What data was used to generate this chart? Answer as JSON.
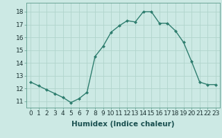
{
  "x": [
    0,
    1,
    2,
    3,
    4,
    5,
    6,
    7,
    8,
    9,
    10,
    11,
    12,
    13,
    14,
    15,
    16,
    17,
    18,
    19,
    20,
    21,
    22,
    23
  ],
  "y": [
    12.5,
    12.2,
    11.9,
    11.6,
    11.3,
    10.9,
    11.2,
    11.7,
    14.5,
    15.3,
    16.4,
    16.9,
    17.3,
    17.2,
    18.0,
    18.0,
    17.1,
    17.1,
    16.5,
    15.6,
    14.1,
    12.5,
    12.3,
    12.3
  ],
  "line_color": "#2e7d6e",
  "marker": "D",
  "marker_size": 2.0,
  "line_width": 1.0,
  "bg_color": "#cce9e4",
  "grid_color": "#b0d4cc",
  "xlabel": "Humidex (Indice chaleur)",
  "xlabel_fontsize": 7.5,
  "tick_fontsize": 6.5,
  "ylim": [
    10.5,
    18.7
  ],
  "xlim": [
    -0.5,
    23.5
  ],
  "yticks": [
    11,
    12,
    13,
    14,
    15,
    16,
    17,
    18
  ],
  "xticks": [
    0,
    1,
    2,
    3,
    4,
    5,
    6,
    7,
    8,
    9,
    10,
    11,
    12,
    13,
    14,
    15,
    16,
    17,
    18,
    19,
    20,
    21,
    22,
    23
  ]
}
